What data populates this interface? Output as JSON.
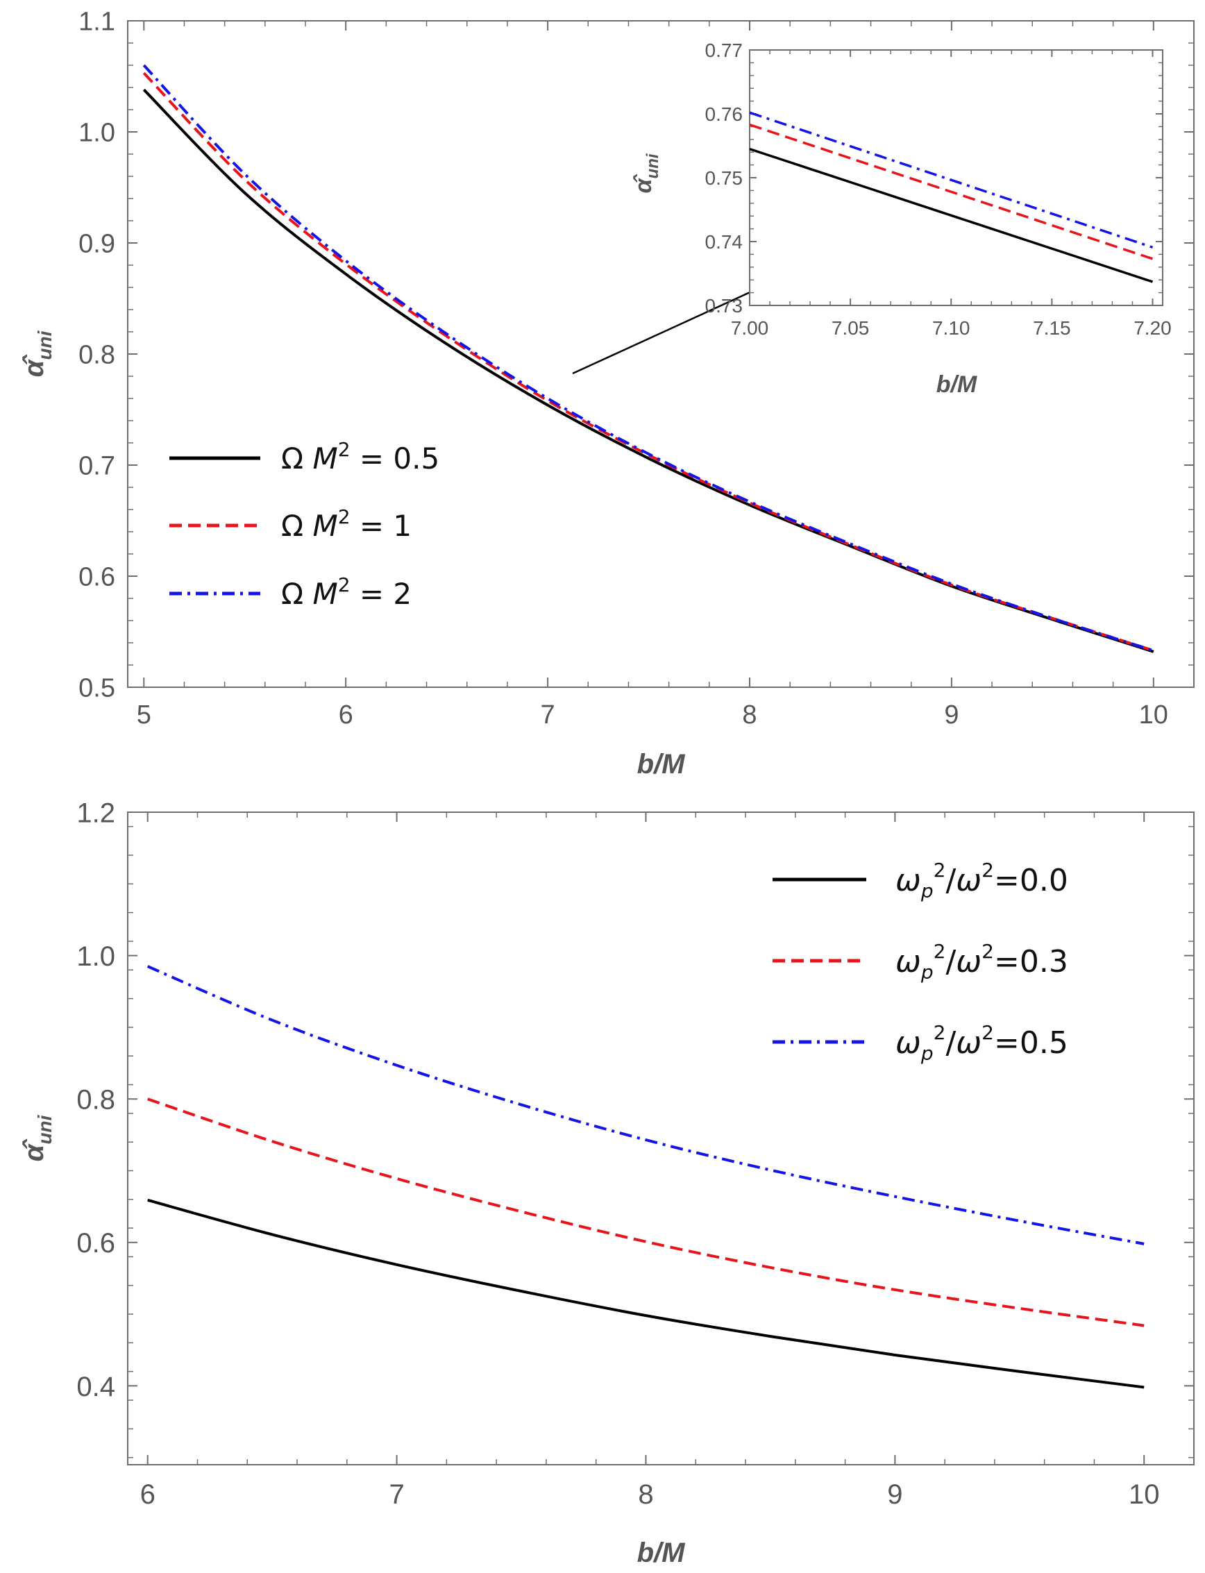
{
  "chart_data": [
    {
      "type": "line",
      "panel": "top",
      "xlabel": "b/M",
      "ylabel": "α̂uni",
      "xlim": [
        4.92,
        10.2
      ],
      "ylim": [
        0.5,
        1.1
      ],
      "x_ticks": [
        "5",
        "6",
        "7",
        "8",
        "9",
        "10"
      ],
      "y_ticks": [
        "0.5",
        "0.6",
        "0.7",
        "0.8",
        "0.9",
        "1.0",
        "1.1"
      ],
      "legend_position": "middle-left",
      "series": [
        {
          "name": "Ω M² = 0.5",
          "legend": {
            "prefix": "Ω ",
            "var": "M",
            "sup": "2",
            "suffix": " = 0.5"
          },
          "color": "#000000",
          "style": "solid",
          "x": [
            5,
            5.5,
            6,
            6.5,
            7,
            7.5,
            8,
            8.5,
            9,
            9.5,
            10
          ],
          "values": [
            1.038,
            0.945,
            0.872,
            0.809,
            0.754,
            0.706,
            0.664,
            0.627,
            0.591,
            0.561,
            0.532
          ]
        },
        {
          "name": "Ω M² = 1",
          "legend": {
            "prefix": "Ω ",
            "var": "M",
            "sup": "2",
            "suffix": " = 1"
          },
          "color": "#e8141c",
          "style": "dashed",
          "x": [
            5,
            5.5,
            6,
            6.5,
            7,
            7.5,
            8,
            8.5,
            9,
            9.5,
            10
          ],
          "values": [
            1.053,
            0.957,
            0.881,
            0.816,
            0.758,
            0.709,
            0.666,
            0.628,
            0.592,
            0.562,
            0.533
          ]
        },
        {
          "name": "Ω M² = 2",
          "legend": {
            "prefix": "Ω ",
            "var": "M",
            "sup": "2",
            "suffix": " = 2"
          },
          "color": "#1414e6",
          "style": "dashdot",
          "x": [
            5,
            5.5,
            6,
            6.5,
            7,
            7.5,
            8,
            8.5,
            9,
            9.5,
            10
          ],
          "values": [
            1.06,
            0.962,
            0.884,
            0.818,
            0.76,
            0.71,
            0.667,
            0.629,
            0.593,
            0.562,
            0.533
          ]
        }
      ],
      "annotation": "arrow pointing from curves near b/M = 7.1 to inset"
    },
    {
      "type": "line",
      "panel": "inset",
      "xlabel": "b/M",
      "ylabel": "α̂uni",
      "xlim": [
        7.0,
        7.205
      ],
      "ylim": [
        0.73,
        0.77
      ],
      "x_ticks": [
        "7.00",
        "7.05",
        "7.10",
        "7.15",
        "7.20"
      ],
      "y_ticks": [
        "0.73",
        "0.74",
        "0.75",
        "0.76",
        "0.77"
      ],
      "series": [
        {
          "name": "Ω M² = 0.5",
          "color": "#000000",
          "style": "solid",
          "x": [
            7.0,
            7.2
          ],
          "values": [
            0.7545,
            0.7337
          ]
        },
        {
          "name": "Ω M² = 1",
          "color": "#e8141c",
          "style": "dashed",
          "x": [
            7.0,
            7.2
          ],
          "values": [
            0.7583,
            0.7373
          ]
        },
        {
          "name": "Ω M² = 2",
          "color": "#1414e6",
          "style": "dashdot",
          "x": [
            7.0,
            7.2
          ],
          "values": [
            0.7602,
            0.7391
          ]
        }
      ]
    },
    {
      "type": "line",
      "panel": "bottom",
      "xlabel": "b/M",
      "ylabel": "α̂uni",
      "xlim": [
        5.92,
        10.2
      ],
      "ylim": [
        0.29,
        1.2
      ],
      "x_ticks": [
        "6",
        "7",
        "8",
        "9",
        "10"
      ],
      "y_ticks": [
        "0.4",
        "0.6",
        "0.8",
        "1.0",
        "1.2"
      ],
      "legend_position": "top-right",
      "series": [
        {
          "name": "ωp²/ω²=0.0",
          "legend": {
            "omega": "ω",
            "sub": "p",
            "sup": "2",
            "slash": "/",
            "omega2": "ω",
            "sup2": "2",
            "suffix": "=0.0"
          },
          "color": "#000000",
          "style": "solid",
          "x": [
            6,
            6.5,
            7,
            7.5,
            8,
            8.5,
            9,
            9.5,
            10
          ],
          "values": [
            0.659,
            0.611,
            0.569,
            0.532,
            0.498,
            0.469,
            0.443,
            0.42,
            0.398
          ]
        },
        {
          "name": "ωp²/ω²=0.3",
          "legend": {
            "omega": "ω",
            "sub": "p",
            "sup": "2",
            "slash": "/",
            "omega2": "ω",
            "sup2": "2",
            "suffix": "=0.3"
          },
          "color": "#e8141c",
          "style": "dashed",
          "x": [
            6,
            6.5,
            7,
            7.5,
            8,
            8.5,
            9,
            9.5,
            10
          ],
          "values": [
            0.8,
            0.741,
            0.689,
            0.643,
            0.601,
            0.565,
            0.534,
            0.508,
            0.484
          ]
        },
        {
          "name": "ωp²/ω²=0.5",
          "legend": {
            "omega": "ω",
            "sub": "p",
            "sup": "2",
            "slash": "/",
            "omega2": "ω",
            "sup2": "2",
            "suffix": "=0.5"
          },
          "color": "#1414e6",
          "style": "dashdot",
          "x": [
            6,
            6.5,
            7,
            7.5,
            8,
            8.5,
            9,
            9.5,
            10
          ],
          "values": [
            0.985,
            0.91,
            0.847,
            0.792,
            0.743,
            0.701,
            0.664,
            0.63,
            0.598
          ]
        }
      ]
    }
  ]
}
